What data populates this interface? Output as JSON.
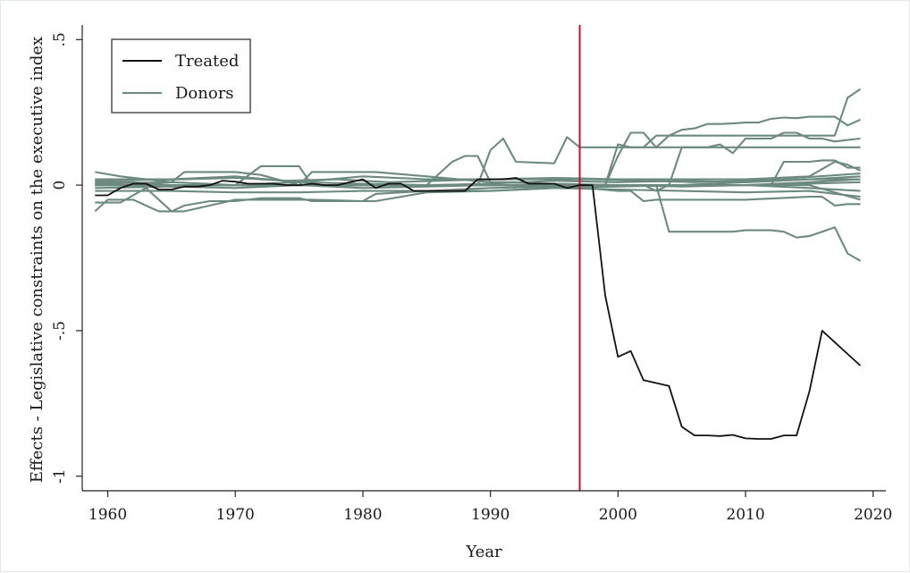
{
  "chart_data": {
    "type": "line",
    "xlabel": "Year",
    "ylabel": "Effects - Legislative constraints on the executive index",
    "xlim": [
      1958,
      2021
    ],
    "ylim": [
      -1.05,
      0.55
    ],
    "x_ticks": [
      1960,
      1970,
      1980,
      1990,
      2000,
      2010,
      2020
    ],
    "x_tick_labels": [
      "1960",
      "1970",
      "1980",
      "1990",
      "2000",
      "2010",
      "2020"
    ],
    "y_ticks": [
      0.5,
      0,
      -0.5,
      -1
    ],
    "y_tick_labels": [
      ".5",
      "0",
      "-.5",
      "-1"
    ],
    "grid": false,
    "legend": {
      "position": "top-left",
      "entries": [
        {
          "label": "Treated",
          "color": "#111111"
        },
        {
          "label": "Donors",
          "color": "#6d8a80"
        }
      ]
    },
    "treatment_line": {
      "x": 1997,
      "color": "#c8102e"
    },
    "series": [
      {
        "name": "Treated",
        "color": "#111111",
        "x": [
          1959,
          1960,
          1961,
          1962,
          1963,
          1964,
          1965,
          1966,
          1967,
          1968,
          1969,
          1970,
          1971,
          1972,
          1973,
          1974,
          1975,
          1976,
          1977,
          1978,
          1979,
          1980,
          1981,
          1982,
          1983,
          1984,
          1985,
          1986,
          1987,
          1988,
          1989,
          1990,
          1991,
          1992,
          1993,
          1994,
          1995,
          1996,
          1997,
          1998,
          1999,
          2000,
          2001,
          2002,
          2003,
          2004,
          2005,
          2006,
          2007,
          2008,
          2009,
          2010,
          2011,
          2012,
          2013,
          2014,
          2015,
          2016,
          2017,
          2018,
          2019
        ],
        "y": [
          -0.035,
          -0.035,
          -0.01,
          0.005,
          0.005,
          -0.015,
          -0.015,
          -0.005,
          -0.005,
          0.0,
          0.015,
          0.012,
          0.005,
          0.005,
          0.005,
          0.0,
          0.0,
          0.005,
          0.0,
          0.0,
          0.01,
          0.02,
          -0.01,
          0.005,
          0.005,
          -0.02,
          -0.02,
          -0.02,
          -0.02,
          -0.02,
          0.02,
          0.02,
          0.02,
          0.025,
          0.005,
          0.005,
          0.005,
          -0.01,
          0.0,
          0.0,
          -0.38,
          -0.59,
          -0.57,
          -0.67,
          -0.68,
          -0.69,
          -0.83,
          -0.86,
          -0.86,
          -0.862,
          -0.858,
          -0.87,
          -0.872,
          -0.872,
          -0.86,
          -0.86,
          -0.71,
          -0.5,
          -0.54,
          -0.58,
          -0.62
        ]
      }
    ],
    "donor_series": [
      {
        "x": [
          1959,
          1960,
          1962,
          1964,
          1965,
          1966,
          1968,
          1970,
          1972,
          1975,
          1976,
          1980,
          1981,
          1985,
          1990,
          1995,
          2000,
          2005,
          2010,
          2015,
          2019
        ],
        "y": [
          -0.09,
          -0.05,
          -0.05,
          -0.09,
          -0.09,
          -0.07,
          -0.055,
          -0.055,
          -0.045,
          -0.045,
          -0.055,
          -0.055,
          -0.055,
          -0.025,
          -0.02,
          -0.01,
          -0.005,
          0.0,
          0.0,
          0.01,
          0.02
        ]
      },
      {
        "x": [
          1959,
          1961,
          1963,
          1965,
          1966,
          1970,
          1972,
          1975,
          1976,
          1980,
          1981,
          1985,
          1990,
          1995,
          2000,
          2005,
          2010,
          2015,
          2019
        ],
        "y": [
          -0.06,
          -0.06,
          -0.01,
          -0.09,
          -0.09,
          -0.05,
          -0.05,
          -0.05,
          -0.05,
          -0.055,
          -0.03,
          -0.02,
          -0.01,
          -0.005,
          0.0,
          0.0,
          0.0,
          0.0,
          -0.05
        ]
      },
      {
        "x": [
          1959,
          1961,
          1963,
          1965,
          1966,
          1970,
          1972,
          1975,
          1976,
          1980,
          1981,
          1985,
          1990,
          1995,
          2000,
          2005,
          2010,
          2015,
          2019
        ],
        "y": [
          0.045,
          0.03,
          0.02,
          0.01,
          0.045,
          0.045,
          0.035,
          0.0,
          0.045,
          0.045,
          0.045,
          0.03,
          0.01,
          0.005,
          0.0,
          0.0,
          0.0,
          0.005,
          0.01
        ]
      },
      {
        "x": [
          1959,
          1962,
          1965,
          1970,
          1972,
          1975,
          1976,
          1980,
          1985,
          1987,
          1988,
          1989,
          1990,
          1991,
          1992,
          1995,
          1996,
          1997,
          1998,
          2000,
          2001,
          2005,
          2010,
          2015,
          2019
        ],
        "y": [
          0.01,
          0.01,
          0.0,
          0.0,
          0.065,
          0.065,
          0.0,
          0.0,
          0.0,
          0.08,
          0.1,
          0.1,
          0.01,
          0.01,
          0.01,
          0.0,
          0.0,
          0.0,
          0.0,
          0.0,
          0.0,
          0.0,
          0.01,
          0.02,
          0.02
        ]
      },
      {
        "x": [
          1959,
          1985,
          1989,
          1990,
          1991,
          1992,
          1995,
          1996,
          1997,
          1998,
          1999,
          2000,
          2002,
          2005,
          2010,
          2015,
          2019
        ],
        "y": [
          0.0,
          0.0,
          0.0,
          0.12,
          0.16,
          0.08,
          0.075,
          0.165,
          0.13,
          0.13,
          0.13,
          0.13,
          0.13,
          0.13,
          0.13,
          0.13,
          0.13
        ]
      },
      {
        "x": [
          1959,
          1990,
          1997,
          1998,
          1999,
          2000,
          2001,
          2002,
          2003,
          2004,
          2005,
          2006,
          2007,
          2008,
          2010,
          2012,
          2013,
          2015,
          2016,
          2017,
          2018,
          2019
        ],
        "y": [
          0.0,
          0.0,
          0.0,
          0.0,
          0.0,
          0.14,
          0.13,
          0.13,
          0.17,
          0.17,
          0.17,
          0.17,
          0.17,
          0.17,
          0.17,
          0.17,
          0.17,
          0.17,
          0.17,
          0.17,
          0.3,
          0.33
        ]
      },
      {
        "x": [
          1959,
          1990,
          1998,
          1999,
          2000,
          2001,
          2002,
          2003,
          2004,
          2005,
          2006,
          2007,
          2008,
          2009,
          2010,
          2011,
          2012,
          2013,
          2014,
          2015,
          2016,
          2017,
          2018,
          2019
        ],
        "y": [
          0.0,
          0.0,
          0.0,
          0.0,
          0.1,
          0.18,
          0.18,
          0.13,
          0.17,
          0.19,
          0.195,
          0.21,
          0.21,
          0.212,
          0.215,
          0.215,
          0.228,
          0.232,
          0.23,
          0.235,
          0.235,
          0.235,
          0.205,
          0.225
        ]
      },
      {
        "x": [
          1959,
          1990,
          2000,
          2001,
          2002,
          2003,
          2004,
          2005,
          2006,
          2007,
          2008,
          2009,
          2010,
          2011,
          2012,
          2013,
          2014,
          2015,
          2016,
          2017,
          2018,
          2019
        ],
        "y": [
          0.0,
          0.0,
          0.0,
          0.0,
          0.0,
          0.0,
          0.0,
          0.13,
          0.13,
          0.13,
          0.14,
          0.11,
          0.16,
          0.16,
          0.16,
          0.18,
          0.18,
          0.16,
          0.16,
          0.15,
          0.155,
          0.16
        ]
      },
      {
        "x": [
          1959,
          1990,
          2000,
          2001,
          2002,
          2003,
          2004,
          2005,
          2006,
          2007,
          2008,
          2009,
          2010,
          2011,
          2012,
          2013,
          2014,
          2015,
          2016,
          2017,
          2018,
          2019
        ],
        "y": [
          0.0,
          0.0,
          0.0,
          0.0,
          0.0,
          0.0,
          -0.16,
          -0.16,
          -0.16,
          -0.16,
          -0.16,
          -0.16,
          -0.155,
          -0.155,
          -0.155,
          -0.16,
          -0.18,
          -0.175,
          -0.16,
          -0.145,
          -0.235,
          -0.26
        ]
      },
      {
        "x": [
          1959,
          1990,
          2000,
          2001,
          2002,
          2003,
          2004,
          2005,
          2010,
          2012,
          2013,
          2014,
          2015,
          2016,
          2017,
          2018,
          2019
        ],
        "y": [
          0.0,
          0.0,
          0.0,
          0.0,
          0.0,
          -0.02,
          0.0,
          0.0,
          0.0,
          0.0,
          0.08,
          0.08,
          0.08,
          0.085,
          0.085,
          0.06,
          0.06
        ]
      },
      {
        "x": [
          1959,
          1990,
          1995,
          2000,
          2001,
          2002,
          2003,
          2004,
          2005,
          2010,
          2015,
          2016,
          2017,
          2018,
          2019
        ],
        "y": [
          0.0,
          0.0,
          0.0,
          -0.02,
          -0.02,
          -0.055,
          -0.05,
          -0.05,
          -0.05,
          -0.05,
          -0.04,
          -0.04,
          -0.07,
          -0.065,
          -0.065
        ]
      },
      {
        "x": [
          1959,
          1965,
          1970,
          1975,
          1980,
          1985,
          1990,
          1995,
          2000,
          2005,
          2010,
          2015,
          2017,
          2018,
          2019
        ],
        "y": [
          0.02,
          0.02,
          0.03,
          0.01,
          0.03,
          0.02,
          0.02,
          0.025,
          0.02,
          0.02,
          0.02,
          0.03,
          0.08,
          0.07,
          0.05
        ]
      },
      {
        "x": [
          1959,
          1965,
          1970,
          1975,
          1980,
          1985,
          1990,
          1995,
          2000,
          2005,
          2010,
          2015,
          2019
        ],
        "y": [
          -0.02,
          -0.02,
          -0.025,
          -0.025,
          -0.02,
          -0.02,
          -0.02,
          -0.01,
          -0.015,
          -0.02,
          -0.025,
          -0.02,
          -0.04
        ]
      },
      {
        "x": [
          1959,
          1965,
          1970,
          1975,
          1980,
          1985,
          1990,
          1995,
          2000,
          2005,
          2010,
          2015,
          2019
        ],
        "y": [
          0.005,
          0.01,
          0.0,
          0.01,
          0.005,
          0.0,
          0.005,
          0.015,
          0.01,
          0.015,
          0.01,
          0.02,
          0.03
        ]
      },
      {
        "x": [
          1959,
          1965,
          1970,
          1975,
          1980,
          1985,
          1990,
          1995,
          2000,
          2005,
          2010,
          2015,
          2019
        ],
        "y": [
          -0.01,
          -0.005,
          -0.01,
          0.0,
          -0.01,
          -0.005,
          0.0,
          -0.005,
          0.0,
          -0.005,
          0.0,
          -0.01,
          -0.02
        ]
      },
      {
        "x": [
          1959,
          1966,
          1970,
          1974,
          1978,
          1982,
          1986,
          1990,
          1994,
          1998,
          2002,
          2006,
          2010,
          2014,
          2019
        ],
        "y": [
          0.015,
          0.02,
          0.025,
          0.015,
          0.02,
          0.01,
          0.015,
          0.02,
          0.02,
          0.02,
          0.015,
          0.01,
          0.015,
          0.025,
          0.04
        ]
      }
    ]
  }
}
